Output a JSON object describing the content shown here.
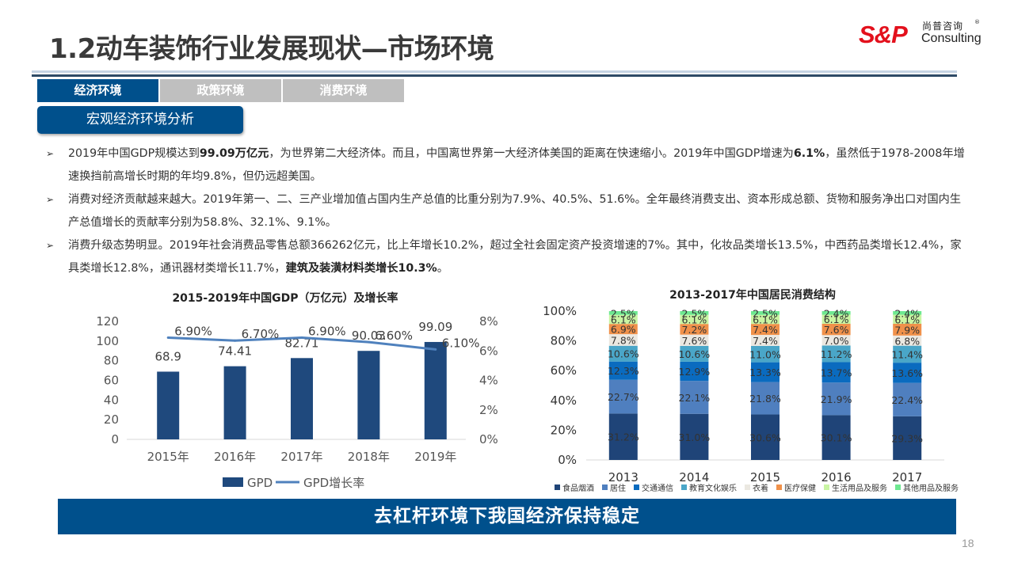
{
  "header": {
    "title": "1.2动车装饰行业发展现状—市场环境",
    "logo": {
      "mark": "S&P",
      "cn": "尚普咨询",
      "en": "Consulting",
      "reg": "®"
    }
  },
  "tabs": [
    {
      "label": "经济环境",
      "active": true
    },
    {
      "label": "政策环境",
      "active": false
    },
    {
      "label": "消费环境",
      "active": false
    }
  ],
  "section_label": "宏观经济环境分析",
  "bullets": [
    {
      "segments": [
        {
          "text": "2019年中国GDP规模达到",
          "bold": false
        },
        {
          "text": "99.09万亿元",
          "bold": true
        },
        {
          "text": "，为世界第二大经济体。而且，中国离世界第一大经济体美国的距离在快速缩小。2019年中国GDP增速为",
          "bold": false
        },
        {
          "text": "6.1%",
          "bold": true
        },
        {
          "text": "，虽然低于1978-2008年增速换挡前高增长时期的年均9.8%，但仍远超美国。",
          "bold": false
        }
      ]
    },
    {
      "segments": [
        {
          "text": "消费对经济贡献越来越大。2019年第一、二、三产业增加值占国内生产总值的比重分别为7.9%、40.5%、51.6%。全年最终消费支出、资本形成总额、货物和服务净出口对国内生产总值增长的贡献率分别为58.8%、32.1%、9.1%。",
          "bold": false
        }
      ]
    },
    {
      "segments": [
        {
          "text": "消费升级态势明显。2019年社会消费品零售总额366262亿元，比上年增长10.2%，超过全社会固定资产投资增速的7%。其中，化妆品类增长13.5%，中西药品类增长12.4%，家具类增长12.8%，通讯器材类增长11.7%，",
          "bold": false
        },
        {
          "text": "建筑及装潢材料类增长10.3%",
          "bold": true
        },
        {
          "text": "。",
          "bold": false
        }
      ]
    }
  ],
  "chart_data": [
    {
      "type": "bar",
      "title": "2015-2019年中国GDP（万亿元）及增长率",
      "categories": [
        "2015年",
        "2016年",
        "2017年",
        "2018年",
        "2019年"
      ],
      "series": [
        {
          "name": "GPD",
          "kind": "bar",
          "axis": "left",
          "values": [
            68.9,
            74.41,
            82.71,
            90.03,
            99.09
          ],
          "labels": [
            "68.9",
            "74.41",
            "82.71",
            "90.03",
            "99.09"
          ],
          "color": "#1f497d"
        },
        {
          "name": "GPD增长率",
          "kind": "line",
          "axis": "right",
          "values": [
            6.9,
            6.7,
            6.9,
            6.6,
            6.1
          ],
          "labels": [
            "6.90%",
            "6.70%",
            "6.90%",
            "6.60%",
            "6.10%"
          ],
          "color": "#4f81bd"
        }
      ],
      "y_left": {
        "ticks": [
          "0",
          "20",
          "40",
          "60",
          "80",
          "100",
          "120"
        ],
        "range": [
          0,
          120
        ]
      },
      "y_right": {
        "ticks": [
          "0%",
          "2%",
          "4%",
          "6%",
          "8%"
        ],
        "range": [
          0,
          8
        ]
      },
      "legend": "bottom",
      "grid": false
    },
    {
      "type": "bar",
      "stacked": true,
      "percent": true,
      "title": "2013-2017年中国居民消费结构",
      "categories": [
        "2013",
        "2014",
        "2015",
        "2016",
        "2017"
      ],
      "series": [
        {
          "name": "食品烟酒",
          "color": "#1f4478",
          "values": [
            31.2,
            31.0,
            30.6,
            30.1,
            29.3
          ]
        },
        {
          "name": "居住",
          "color": "#4f7fbf",
          "values": [
            22.7,
            22.1,
            21.8,
            21.9,
            22.4
          ]
        },
        {
          "name": "交通通信",
          "color": "#0a6bbf",
          "values": [
            12.3,
            12.9,
            13.3,
            13.7,
            13.6
          ]
        },
        {
          "name": "教育文化娱乐",
          "color": "#4aa6c8",
          "values": [
            10.6,
            10.6,
            11.0,
            11.2,
            11.4
          ]
        },
        {
          "name": "衣着",
          "color": "#ebe8e1",
          "values": [
            7.8,
            7.6,
            7.4,
            7.0,
            6.8
          ]
        },
        {
          "name": "医疗保健",
          "color": "#f0914a",
          "values": [
            6.9,
            7.2,
            7.4,
            7.6,
            7.9
          ]
        },
        {
          "name": "生活用品及服务",
          "color": "#c9f5a3",
          "values": [
            6.1,
            6.1,
            6.1,
            6.1,
            6.1
          ]
        },
        {
          "name": "其他用品及服务",
          "color": "#6ee891",
          "values": [
            2.5,
            2.5,
            2.5,
            2.4,
            2.4
          ]
        }
      ],
      "y": {
        "ticks": [
          "0%",
          "20%",
          "40%",
          "60%",
          "80%",
          "100%"
        ],
        "range": [
          0,
          100
        ]
      },
      "legend": "bottom",
      "grid": false
    }
  ],
  "banner": "去杠杆环境下我国经济保持稳定",
  "page_number": "18",
  "colors": {
    "brand_blue": "#00508c",
    "tab_inactive": "#bfbfbf",
    "logo_red": "#e3101c"
  }
}
